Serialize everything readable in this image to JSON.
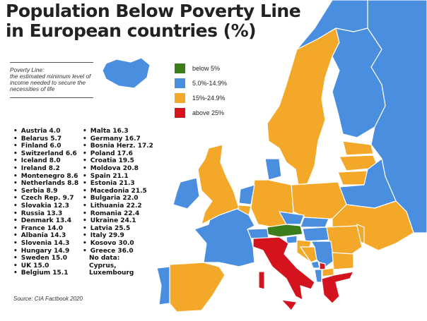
{
  "title": [
    "Population Below Poverty Line",
    "in European countries (%)"
  ],
  "definition": {
    "heading": "Poverty Line:",
    "text": "the estimated minimum level of income needed to secure the necessities of life"
  },
  "legend": [
    {
      "label": "below 5%",
      "color": "#3b7d1a"
    },
    {
      "label": "5.0%-14.9%",
      "color": "#4a8ee0"
    },
    {
      "label": "15%-24.9%",
      "color": "#f4a82a"
    },
    {
      "label": "above 25%",
      "color": "#d3131d"
    }
  ],
  "countries_col1": [
    "Austria 4.0",
    "Belarus 5.7",
    "Finland 6.0",
    "Switzerland 6.6",
    "Iceland 8.0",
    "Ireland 8.2",
    "Montenegro 8.6",
    "Netherlands 8.8",
    "Serbia 8.9",
    "Czech Rep. 9.7",
    "Slovakia 12.3",
    "Russia 13.3",
    "Denmark 13.4",
    "France 14.0",
    "Albania 14.3",
    "Slovenia 14.3",
    "Hungary 14.9",
    "Sweden 15.0",
    "UK 15.0",
    "Belgium 15.1"
  ],
  "countries_col2": [
    "Malta 16.3",
    "Germany 16.7",
    "Bosnia Herz. 17.2",
    "Poland 17.6",
    "Croatia 19.5",
    "Moldova 20.8",
    "Spain 21.1",
    "Estonia 21.3",
    "Macedonia 21.5",
    "Bulgaria 22.0",
    "Lithuania 22.2",
    "Romania 22.4",
    "Ukraine 24.1",
    "Latvia 25.5",
    "Italy 29.9",
    "Kosovo 30.0",
    "Greece 36.0"
  ],
  "no_data": [
    "No data:",
    "Cyprus,",
    "Luxembourg"
  ],
  "source": "Source: CIA Factbook 2020"
}
